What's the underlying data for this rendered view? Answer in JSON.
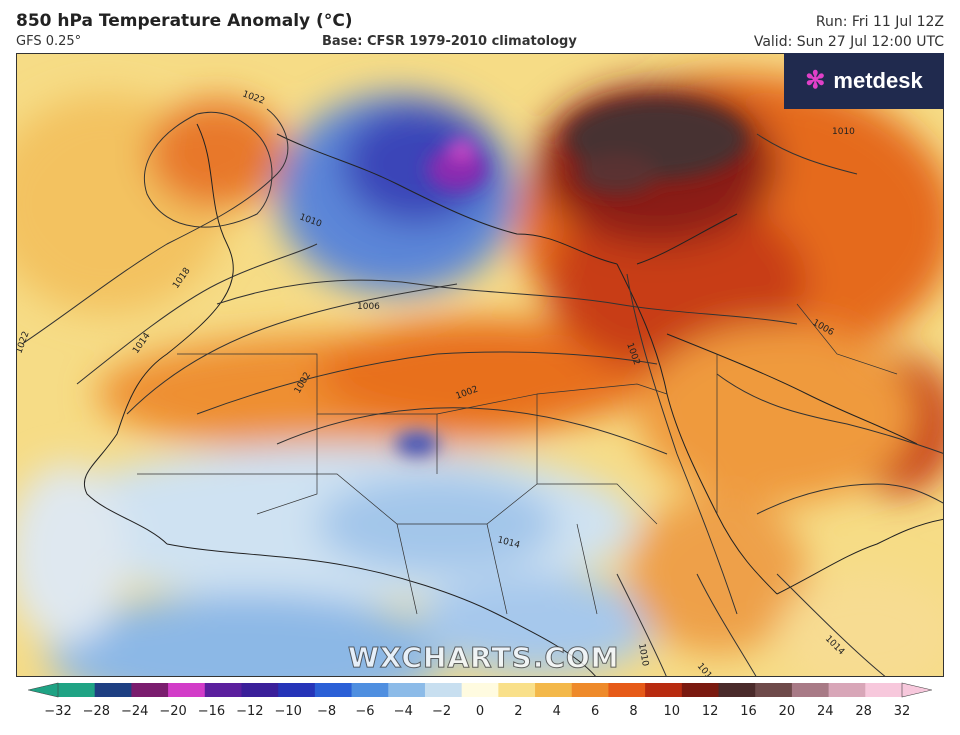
{
  "header": {
    "title": "850 hPa Temperature Anomaly (°C)",
    "model": "GFS 0.25°",
    "base": "Base: CFSR 1979-2010 climatology",
    "run": "Run: Fri 11 Jul 12Z",
    "valid": "Valid: Sun 27 Jul 12:00 UTC"
  },
  "logo": {
    "text": "metdesk",
    "icon": "metdesk-flower-icon"
  },
  "watermark": "WXCHARTS.COM",
  "colorbar": {
    "ticks": [
      "−32",
      "−28",
      "−24",
      "−20",
      "−16",
      "−12",
      "−10",
      "−8",
      "−6",
      "−4",
      "−2",
      "0",
      "2",
      "4",
      "6",
      "8",
      "10",
      "12",
      "16",
      "20",
      "24",
      "28",
      "32"
    ],
    "colors": [
      "#1fa384",
      "#1e3f82",
      "#7a1d6e",
      "#d23cc8",
      "#5b1f9e",
      "#3a1f9a",
      "#2534b8",
      "#2a5fd6",
      "#4f8fe0",
      "#8cbbe8",
      "#c8dff0",
      "#fffbe0",
      "#f9e08a",
      "#f3b84a",
      "#ee8a2a",
      "#e65a18",
      "#b82b10",
      "#7a1a10",
      "#4a2a2a",
      "#6e4a4a",
      "#a87a86",
      "#d8a6b8",
      "#f7c8dc"
    ]
  },
  "map": {
    "isobars": [
      "1022",
      "1018",
      "1014",
      "1010",
      "1006",
      "1002",
      "1002",
      "1002",
      "1006",
      "1010",
      "1014",
      "1018",
      "1014",
      "1010",
      "1022"
    ]
  }
}
